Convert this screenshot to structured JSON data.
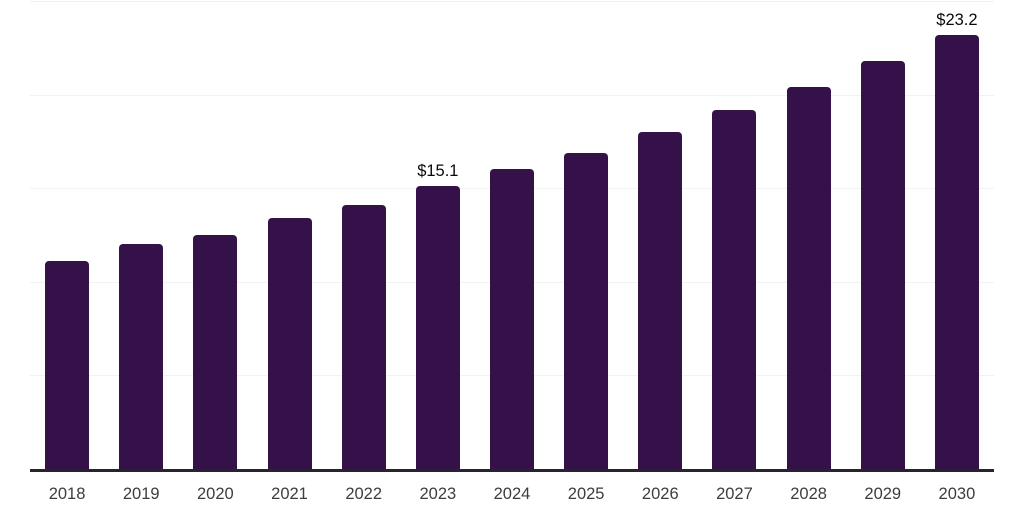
{
  "chart_data": {
    "type": "bar",
    "title": "",
    "xlabel": "",
    "ylabel": "",
    "categories": [
      "2018",
      "2019",
      "2020",
      "2021",
      "2022",
      "2023",
      "2024",
      "2025",
      "2026",
      "2027",
      "2028",
      "2029",
      "2030"
    ],
    "values": [
      11.1,
      12.0,
      12.5,
      13.4,
      14.1,
      15.1,
      16.0,
      16.9,
      18.0,
      19.2,
      20.4,
      21.8,
      23.2
    ],
    "data_labels": [
      null,
      null,
      null,
      null,
      null,
      "$15.1",
      null,
      null,
      null,
      null,
      null,
      null,
      "$23.2"
    ],
    "ylim": [
      0,
      25
    ],
    "gridline_values": [
      5,
      10,
      15,
      20,
      25
    ],
    "grid": "horizontal",
    "legend": "none",
    "colors": {
      "bar": "#351149",
      "axis_line": "#26242e",
      "gridline": "#f2f2f3",
      "tick_label": "#3d3d3d",
      "data_label": "#0a0a0a",
      "background": "#ffffff"
    }
  }
}
